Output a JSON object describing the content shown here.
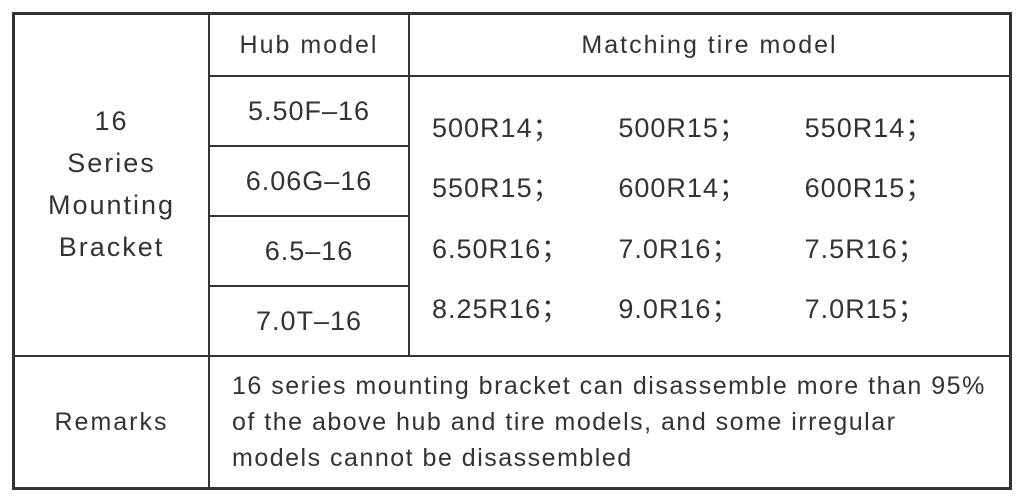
{
  "table": {
    "border_color": "#333333",
    "text_color": "#333333",
    "background_color": "#ffffff",
    "font_family": "Arial",
    "series_label": "16\nSeries\nMounting\nBracket",
    "hub_header": "Hub model",
    "hub_models": [
      "5.50F–16",
      "6.06G–16",
      "6.5–16",
      "7.0T–16"
    ],
    "tire_header": "Matching tire model",
    "tire_rows": [
      [
        "500R14；",
        "500R15；",
        "550R14；"
      ],
      [
        "550R15；",
        "600R14；",
        "600R15；"
      ],
      [
        "6.50R16；",
        "7.0R16；",
        "7.5R16；"
      ],
      [
        "8.25R16；",
        "9.0R16；",
        "7.0R15；"
      ]
    ],
    "remarks_label": "Remarks",
    "remarks_body": "16 series mounting bracket can disassemble more than 95% of the above hub and tire models, and some irregular models cannot be disassembled"
  }
}
